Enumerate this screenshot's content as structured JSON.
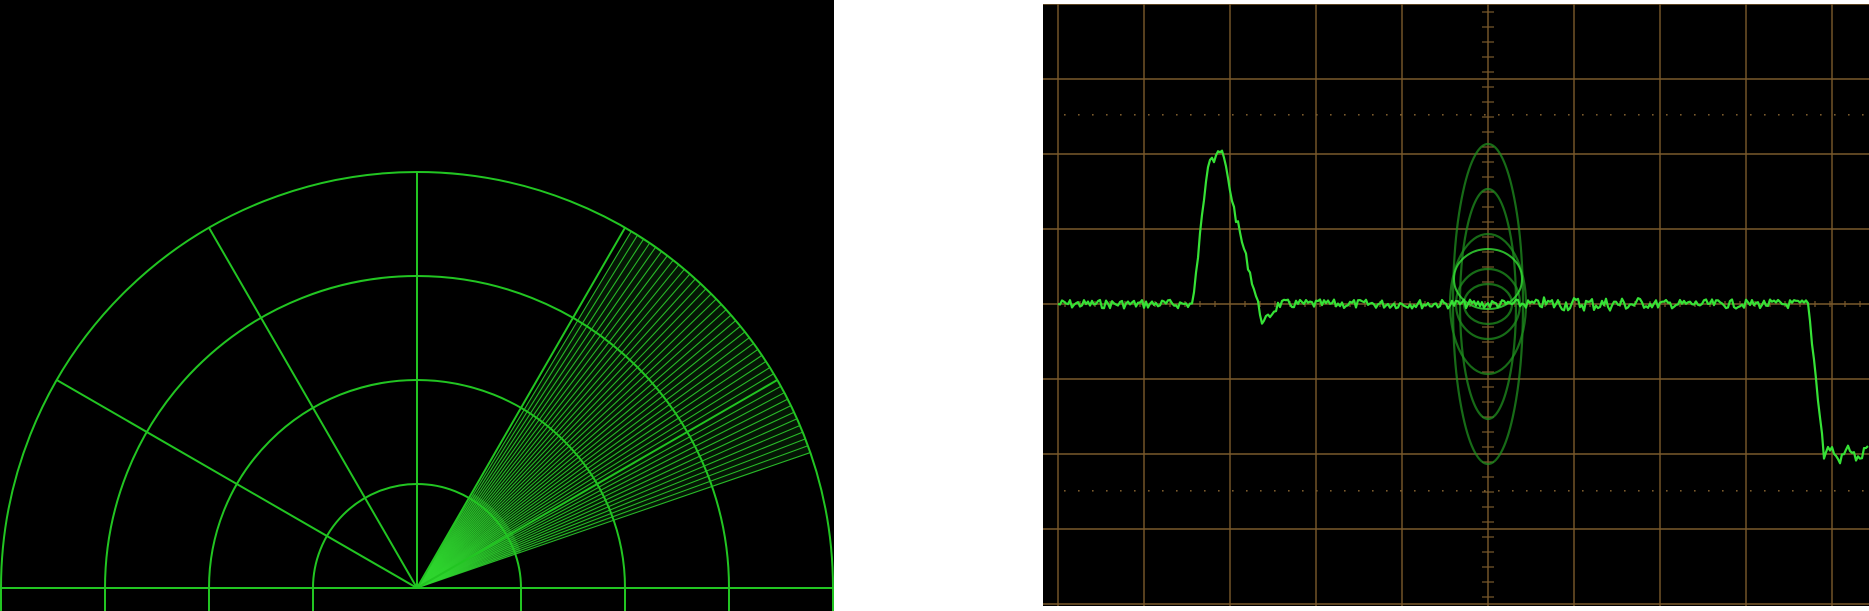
{
  "radar": {
    "background": "#000000",
    "line_color": "#22c522",
    "sweep_color": "#2fd62f",
    "range_rings": 4,
    "spoke_angles_deg": [
      0,
      30,
      60,
      90,
      120,
      150,
      180
    ],
    "sweep": {
      "start_deg": 19,
      "end_deg": 59,
      "line_count": 40
    }
  },
  "oscilloscope": {
    "background": "#000000",
    "graticule_color": "#7a5a2c",
    "trace_color": "#36e236",
    "ghost_color": "#1f8f1f",
    "divisions": {
      "x": 10,
      "y": 8
    }
  }
}
